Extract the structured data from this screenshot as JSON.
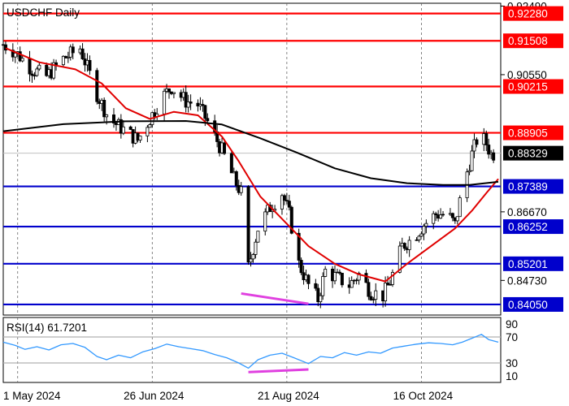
{
  "chart_data": [
    {
      "type": "candlestick",
      "title": "USDCHF Daily",
      "y_ticks": [
        "0.92490",
        "0.90550",
        "0.86670",
        "0.84730"
      ],
      "ylim": [
        0.8375,
        0.9257
      ],
      "x_ticks": [
        "1 May 2024",
        "26 Jun 2024",
        "21 Aug 2024",
        "16 Oct 2024"
      ],
      "x_range": [
        "2024-04-25",
        "2024-11-18"
      ],
      "current_price": 0.88329,
      "current_price_label": "0.88329",
      "resistance_levels": [
        {
          "value": 0.9228,
          "label": "0.92280",
          "color": "#ff0000"
        },
        {
          "value": 0.91508,
          "label": "0.91508",
          "color": "#ff0000"
        },
        {
          "value": 0.90215,
          "label": "0.90215",
          "color": "#ff0000"
        },
        {
          "value": 0.88905,
          "label": "0.88905",
          "color": "#ff0000"
        }
      ],
      "support_levels": [
        {
          "value": 0.87389,
          "label": "0.87389",
          "color": "#0000cc"
        },
        {
          "value": 0.86252,
          "label": "0.86252",
          "color": "#0000cc"
        },
        {
          "value": 0.85201,
          "label": "0.85201",
          "color": "#0000cc"
        },
        {
          "value": 0.8405,
          "label": "0.84050",
          "color": "#0000cc"
        }
      ],
      "close_path": [
        [
          "2024-04-25",
          0.914
        ],
        [
          "2024-04-30",
          0.912
        ],
        [
          "2024-05-07",
          0.907
        ],
        [
          "2024-05-13",
          0.905
        ],
        [
          "2024-05-20",
          0.91
        ],
        [
          "2024-05-27",
          0.913
        ],
        [
          "2024-06-03",
          0.9
        ],
        [
          "2024-06-08",
          0.893
        ],
        [
          "2024-06-14",
          0.89
        ],
        [
          "2024-06-20",
          0.887
        ],
        [
          "2024-06-25",
          0.893
        ],
        [
          "2024-06-30",
          0.899
        ],
        [
          "2024-07-04",
          0.902
        ],
        [
          "2024-07-10",
          0.898
        ],
        [
          "2024-07-15",
          0.897
        ],
        [
          "2024-07-20",
          0.891
        ],
        [
          "2024-07-25",
          0.884
        ],
        [
          "2024-07-30",
          0.876
        ],
        [
          "2024-08-02",
          0.872
        ],
        [
          "2024-08-05",
          0.851
        ],
        [
          "2024-08-09",
          0.862
        ],
        [
          "2024-08-14",
          0.868
        ],
        [
          "2024-08-19",
          0.872
        ],
        [
          "2024-08-22",
          0.866
        ],
        [
          "2024-08-26",
          0.852
        ],
        [
          "2024-08-30",
          0.846
        ],
        [
          "2024-09-03",
          0.842
        ],
        [
          "2024-09-06",
          0.85
        ],
        [
          "2024-09-11",
          0.848
        ],
        [
          "2024-09-16",
          0.846
        ],
        [
          "2024-09-20",
          0.849
        ],
        [
          "2024-09-25",
          0.844
        ],
        [
          "2024-09-30",
          0.843
        ],
        [
          "2024-10-03",
          0.847
        ],
        [
          "2024-10-08",
          0.857
        ],
        [
          "2024-10-12",
          0.859
        ],
        [
          "2024-10-17",
          0.863
        ],
        [
          "2024-10-22",
          0.866
        ],
        [
          "2024-10-27",
          0.866
        ],
        [
          "2024-10-30",
          0.863
        ],
        [
          "2024-11-02",
          0.873
        ],
        [
          "2024-11-06",
          0.883
        ],
        [
          "2024-11-09",
          0.889
        ],
        [
          "2024-11-12",
          0.886
        ],
        [
          "2024-11-14",
          0.883
        ],
        [
          "2024-11-16",
          0.8833
        ]
      ],
      "series": [
        {
          "name": "",
          "color": "#e00000",
          "points": [
            [
              "2024-04-26",
              0.913
            ],
            [
              "2024-05-10",
              0.909
            ],
            [
              "2024-05-25",
              0.907
            ],
            [
              "2024-06-05",
              0.903
            ],
            [
              "2024-06-15",
              0.896
            ],
            [
              "2024-06-25",
              0.893
            ],
            [
              "2024-07-05",
              0.895
            ],
            [
              "2024-07-15",
              0.894
            ],
            [
              "2024-07-25",
              0.888
            ],
            [
              "2024-08-01",
              0.881
            ],
            [
              "2024-08-10",
              0.871
            ],
            [
              "2024-08-20",
              0.864
            ],
            [
              "2024-08-30",
              0.857
            ],
            [
              "2024-09-10",
              0.852
            ],
            [
              "2024-09-20",
              0.849
            ],
            [
              "2024-10-01",
              0.847
            ],
            [
              "2024-10-10",
              0.852
            ],
            [
              "2024-10-20",
              0.857
            ],
            [
              "2024-10-30",
              0.862
            ],
            [
              "2024-11-06",
              0.867
            ],
            [
              "2024-11-12",
              0.872
            ],
            [
              "2024-11-17",
              0.876
            ]
          ]
        },
        {
          "name": "",
          "color": "#000000",
          "points": [
            [
              "2024-04-25",
              0.8895
            ],
            [
              "2024-05-20",
              0.8915
            ],
            [
              "2024-06-15",
              0.8923
            ],
            [
              "2024-07-10",
              0.8924
            ],
            [
              "2024-07-25",
              0.8914
            ],
            [
              "2024-08-10",
              0.8875
            ],
            [
              "2024-08-25",
              0.8835
            ],
            [
              "2024-09-10",
              0.879
            ],
            [
              "2024-09-25",
              0.8762
            ],
            [
              "2024-10-10",
              0.8748
            ],
            [
              "2024-10-25",
              0.8743
            ],
            [
              "2024-11-05",
              0.8743
            ],
            [
              "2024-11-17",
              0.8752
            ]
          ]
        }
      ],
      "annotation_lines": [
        {
          "color": "#e040e0",
          "from": [
            "2024-08-02",
            0.8436
          ],
          "to": [
            "2024-08-30",
            0.8407
          ]
        }
      ]
    },
    {
      "type": "line",
      "title": "RSI(14) 61.7201",
      "y_ticks": [
        "90",
        "70",
        "30",
        "10"
      ],
      "ylim": [
        0,
        100
      ],
      "reference_lines": [
        70,
        30
      ],
      "series": [
        {
          "name": "RSI(14)",
          "color": "#3399ff",
          "points": [
            [
              "2024-04-25",
              62
            ],
            [
              "2024-04-30",
              57
            ],
            [
              "2024-05-04",
              51
            ],
            [
              "2024-05-09",
              55
            ],
            [
              "2024-05-14",
              50
            ],
            [
              "2024-05-19",
              58
            ],
            [
              "2024-05-24",
              60
            ],
            [
              "2024-05-29",
              54
            ],
            [
              "2024-06-03",
              40
            ],
            [
              "2024-06-07",
              35
            ],
            [
              "2024-06-12",
              42
            ],
            [
              "2024-06-17",
              38
            ],
            [
              "2024-06-22",
              47
            ],
            [
              "2024-06-27",
              52
            ],
            [
              "2024-07-02",
              59
            ],
            [
              "2024-07-07",
              55
            ],
            [
              "2024-07-12",
              52
            ],
            [
              "2024-07-17",
              49
            ],
            [
              "2024-07-22",
              43
            ],
            [
              "2024-07-27",
              38
            ],
            [
              "2024-08-01",
              30
            ],
            [
              "2024-08-05",
              22
            ],
            [
              "2024-08-09",
              35
            ],
            [
              "2024-08-14",
              42
            ],
            [
              "2024-08-19",
              45
            ],
            [
              "2024-08-24",
              38
            ],
            [
              "2024-08-30",
              29
            ],
            [
              "2024-09-04",
              40
            ],
            [
              "2024-09-09",
              38
            ],
            [
              "2024-09-14",
              46
            ],
            [
              "2024-09-19",
              42
            ],
            [
              "2024-09-24",
              47
            ],
            [
              "2024-09-29",
              45
            ],
            [
              "2024-10-04",
              53
            ],
            [
              "2024-10-09",
              56
            ],
            [
              "2024-10-14",
              59
            ],
            [
              "2024-10-19",
              61
            ],
            [
              "2024-10-24",
              60
            ],
            [
              "2024-10-29",
              58
            ],
            [
              "2024-11-02",
              62
            ],
            [
              "2024-11-06",
              68
            ],
            [
              "2024-11-10",
              74
            ],
            [
              "2024-11-13",
              66
            ],
            [
              "2024-11-17",
              62
            ]
          ]
        }
      ],
      "annotation_lines": [
        {
          "color": "#e040e0",
          "from": [
            "2024-08-05",
            16
          ],
          "to": [
            "2024-08-30",
            20
          ]
        }
      ]
    }
  ]
}
